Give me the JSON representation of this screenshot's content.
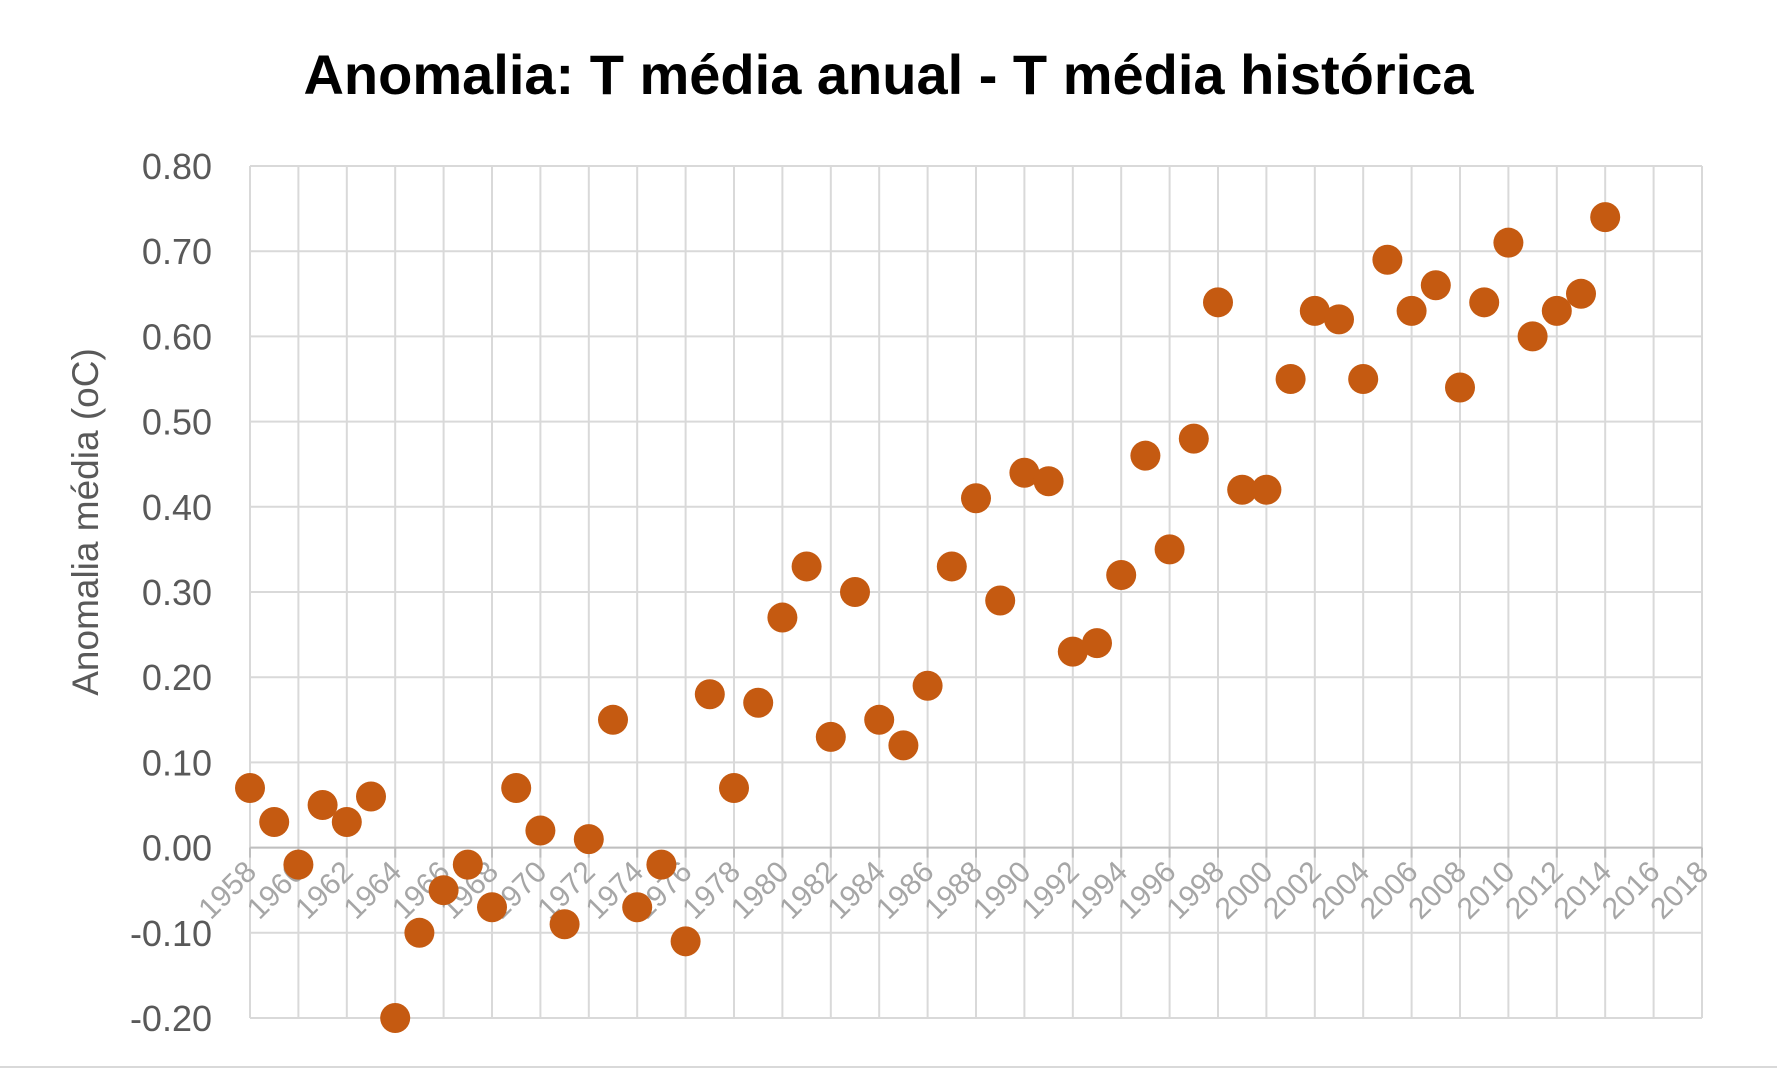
{
  "chart_data": {
    "type": "scatter",
    "title": "Anomalia: T média anual - T média histórica",
    "xlabel": "",
    "ylabel": "Anomalia média (oC)",
    "xlim": [
      1958,
      2018
    ],
    "ylim": [
      -0.2,
      0.8
    ],
    "x_ticks": [
      "1958",
      "1960",
      "1962",
      "1964",
      "1966",
      "1968",
      "1970",
      "1972",
      "1974",
      "1976",
      "1978",
      "1980",
      "1982",
      "1984",
      "1986",
      "1988",
      "1990",
      "1992",
      "1994",
      "1996",
      "1998",
      "2000",
      "2002",
      "2004",
      "2006",
      "2008",
      "2010",
      "2012",
      "2014",
      "2016",
      "2018"
    ],
    "y_ticks": [
      "-0.20",
      "-0.10",
      "0.00",
      "0.10",
      "0.20",
      "0.30",
      "0.40",
      "0.50",
      "0.60",
      "0.70",
      "0.80"
    ],
    "grid": true,
    "marker_color": "#C55A11",
    "x": [
      1958,
      1959,
      1960,
      1961,
      1962,
      1963,
      1964,
      1965,
      1966,
      1967,
      1968,
      1969,
      1970,
      1971,
      1972,
      1973,
      1974,
      1975,
      1976,
      1977,
      1978,
      1979,
      1980,
      1981,
      1982,
      1983,
      1984,
      1985,
      1986,
      1987,
      1988,
      1989,
      1990,
      1991,
      1992,
      1993,
      1994,
      1995,
      1996,
      1997,
      1998,
      1999,
      2000,
      2001,
      2002,
      2003,
      2004,
      2005,
      2006,
      2007,
      2008,
      2009,
      2010,
      2011,
      2012,
      2013,
      2014
    ],
    "y": [
      0.07,
      0.03,
      -0.02,
      0.05,
      0.03,
      0.06,
      -0.2,
      -0.1,
      -0.05,
      -0.02,
      -0.07,
      0.07,
      0.02,
      -0.09,
      0.01,
      0.15,
      -0.07,
      -0.02,
      -0.11,
      0.18,
      0.07,
      0.17,
      0.27,
      0.33,
      0.13,
      0.3,
      0.15,
      0.12,
      0.19,
      0.33,
      0.41,
      0.29,
      0.44,
      0.43,
      0.23,
      0.24,
      0.32,
      0.46,
      0.35,
      0.48,
      0.64,
      0.42,
      0.42,
      0.55,
      0.63,
      0.62,
      0.55,
      0.69,
      0.63,
      0.66,
      0.54,
      0.64,
      0.71,
      0.6,
      0.63,
      0.65,
      0.74
    ]
  }
}
